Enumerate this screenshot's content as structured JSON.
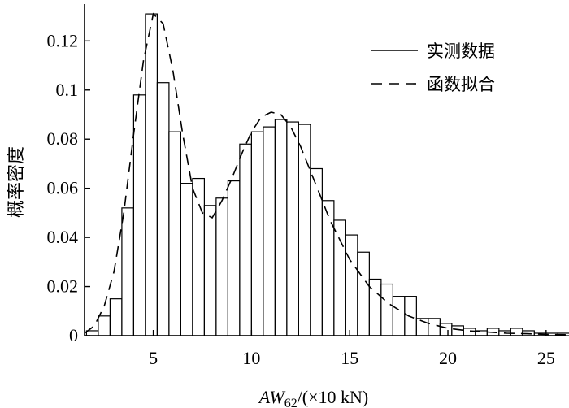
{
  "chart_data": {
    "type": "bar",
    "xlabel_parts": {
      "main": "AW",
      "sub": "62",
      "unit": "/(×10 kN)"
    },
    "ylabel": "概率密度",
    "xlim": [
      1.5,
      26
    ],
    "ylim": [
      0,
      0.135
    ],
    "x_ticks": [
      5,
      10,
      15,
      20,
      25
    ],
    "x_tick_labels": [
      "5",
      "10",
      "15",
      "20",
      "25"
    ],
    "y_ticks": [
      0,
      0.02,
      0.04,
      0.06,
      0.08,
      0.1,
      0.12
    ],
    "y_tick_labels": [
      "0",
      "0.02",
      "0.04",
      "0.06",
      "0.08",
      "0.1",
      "0.12"
    ],
    "bin_width": 0.6,
    "bin_start": 1.6,
    "histogram_values": [
      0.002,
      0.008,
      0.015,
      0.052,
      0.098,
      0.131,
      0.103,
      0.083,
      0.062,
      0.064,
      0.053,
      0.056,
      0.063,
      0.078,
      0.083,
      0.085,
      0.088,
      0.087,
      0.086,
      0.068,
      0.055,
      0.047,
      0.041,
      0.034,
      0.023,
      0.021,
      0.016,
      0.016,
      0.007,
      0.007,
      0.005,
      0.004,
      0.003,
      0.002,
      0.003,
      0.002,
      0.003,
      0.002,
      0.001,
      0.001,
      0.001,
      0.001
    ],
    "series": [
      {
        "name": "实测数据",
        "style": "solid"
      },
      {
        "name": "函数拟合",
        "style": "dashed",
        "x": [
          1.5,
          2,
          2.5,
          3,
          3.5,
          4,
          4.5,
          5,
          5.5,
          6,
          6.5,
          7,
          7.5,
          8,
          8.5,
          9,
          9.5,
          10,
          10.5,
          11,
          11.5,
          12,
          12.5,
          13,
          13.5,
          14,
          14.5,
          15,
          16,
          17,
          18,
          19,
          20,
          21,
          22,
          23,
          24,
          25,
          26
        ],
        "y": [
          0.001,
          0.004,
          0.012,
          0.026,
          0.05,
          0.082,
          0.112,
          0.131,
          0.127,
          0.108,
          0.082,
          0.06,
          0.05,
          0.048,
          0.055,
          0.064,
          0.074,
          0.083,
          0.089,
          0.091,
          0.09,
          0.085,
          0.077,
          0.067,
          0.057,
          0.047,
          0.039,
          0.031,
          0.02,
          0.013,
          0.008,
          0.005,
          0.003,
          0.002,
          0.0015,
          0.001,
          0.0008,
          0.0005,
          0.0004
        ]
      }
    ],
    "legend_position": "top-right",
    "grid": false,
    "colors": {
      "bar_fill": "#ffffff",
      "bar_stroke": "#000000",
      "line": "#000000"
    }
  }
}
